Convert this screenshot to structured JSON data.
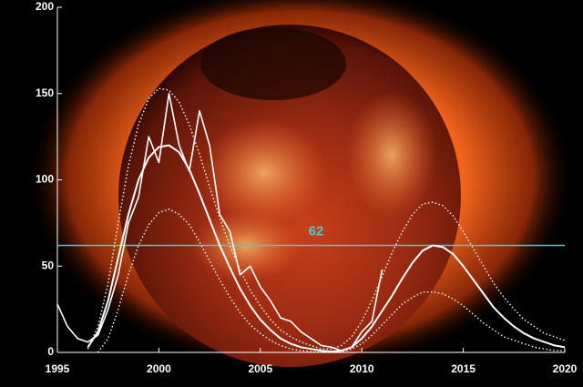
{
  "chart_data": {
    "type": "line",
    "x": [
      1995,
      1995.5,
      1996,
      1996.5,
      1997,
      1997.5,
      1998,
      1998.5,
      1999,
      1999.5,
      2000,
      2000.5,
      2001,
      2001.5,
      2002,
      2002.5,
      2003,
      2003.5,
      2004,
      2004.5,
      2005,
      2005.5,
      2006,
      2006.5,
      2007,
      2007.5,
      2008,
      2008.5,
      2009,
      2009.5,
      2010,
      2010.5,
      2011,
      2011.5,
      2012,
      2012.5,
      2013,
      2013.5,
      2014,
      2014.5,
      2015,
      2015.5,
      2016,
      2016.5,
      2017,
      2017.5,
      2018,
      2018.5,
      2019,
      2019.5,
      2020
    ],
    "series": [
      {
        "color": "#ffffff",
        "dash": false,
        "width": 1.6,
        "values": [
          28,
          15,
          8,
          6,
          10,
          25,
          45,
          75,
          90,
          125,
          110,
          150,
          120,
          105,
          140,
          120,
          80,
          70,
          45,
          50,
          38,
          30,
          20,
          18,
          12,
          8,
          4,
          3,
          1,
          3,
          12,
          18,
          48,
          null,
          null,
          null,
          null,
          null,
          null,
          null,
          null,
          null,
          null,
          null,
          null,
          null,
          null,
          null,
          null,
          null,
          null
        ]
      },
      {
        "color": "#ffffff",
        "dash": false,
        "width": 2,
        "values": [
          null,
          null,
          null,
          3,
          12,
          30,
          55,
          80,
          100,
          113,
          119,
          120,
          116,
          106,
          92,
          77,
          62,
          49,
          37,
          27,
          19,
          13,
          8,
          5,
          3,
          2,
          1,
          0.5,
          1,
          3,
          8,
          15,
          24,
          33,
          43,
          52,
          59,
          62,
          61,
          57,
          50,
          42,
          34,
          26,
          20,
          15,
          11,
          8,
          6,
          4,
          3
        ]
      },
      {
        "color": "#ffffff",
        "dash": true,
        "width": 1.4,
        "values": [
          null,
          null,
          null,
          2,
          15,
          40,
          75,
          108,
          132,
          147,
          153,
          152,
          145,
          132,
          115,
          96,
          78,
          62,
          48,
          36,
          27,
          19,
          13,
          9,
          6,
          4,
          2,
          2,
          4,
          9,
          18,
          30,
          44,
          58,
          70,
          80,
          86,
          87,
          85,
          79,
          70,
          60,
          50,
          40,
          32,
          25,
          19,
          15,
          11,
          9,
          7
        ]
      },
      {
        "color": "#ffffff",
        "dash": true,
        "width": 1.4,
        "values": [
          null,
          null,
          null,
          null,
          0,
          8,
          25,
          45,
          62,
          74,
          81,
          83,
          80,
          74,
          64,
          53,
          42,
          32,
          23,
          16,
          11,
          7,
          4,
          2,
          1,
          0.5,
          0,
          0,
          0,
          2,
          5,
          10,
          16,
          22,
          28,
          32,
          35,
          35,
          34,
          31,
          27,
          22,
          17,
          13,
          9,
          7,
          5,
          3,
          2,
          1,
          1
        ]
      }
    ],
    "reference_line": {
      "value": 62,
      "color": "#4fc8c8"
    },
    "xlim": [
      1995,
      2020
    ],
    "xticks": [
      1995,
      2000,
      2005,
      2010,
      2015,
      2020
    ],
    "ylim": [
      0,
      200
    ],
    "yticks": [
      0,
      50,
      100,
      150,
      200
    ]
  }
}
